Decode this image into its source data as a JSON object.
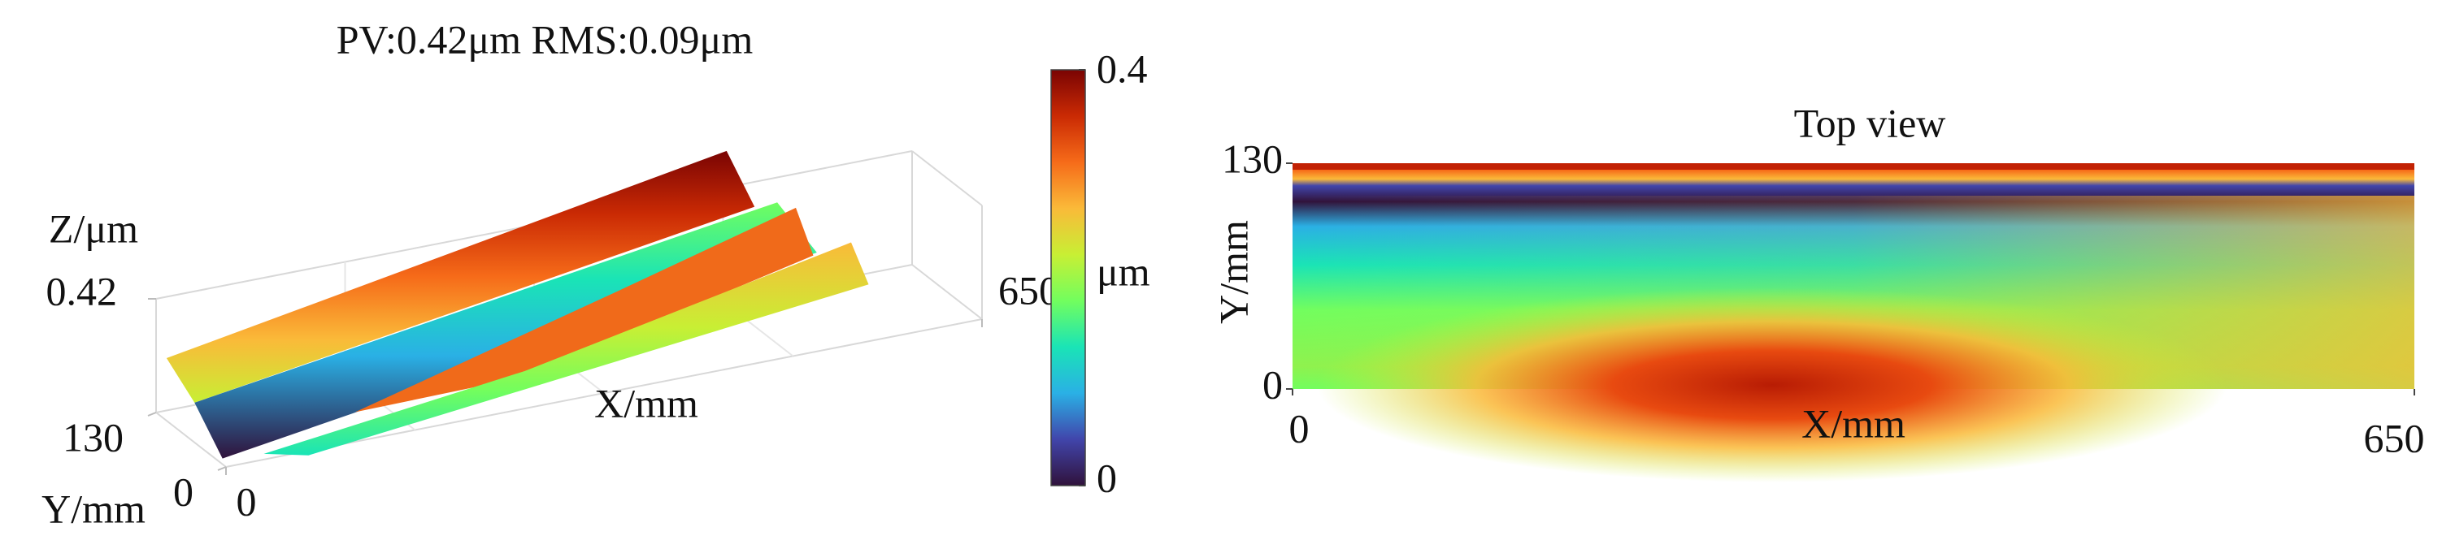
{
  "chart_data": [
    {
      "type": "surface3d",
      "title": "PV:0.42μm RMS:0.09μm",
      "xlabel": "X/mm",
      "ylabel": "Y/mm",
      "zlabel": "Z/μm",
      "xlim": [
        0,
        650
      ],
      "ylim": [
        0,
        130
      ],
      "zlim": [
        0,
        0.42
      ],
      "xticks": [
        0,
        650
      ],
      "yticks": [
        0,
        130
      ],
      "zticks": [
        0.42
      ],
      "colormap": [
        "#30123b",
        "#4145ab",
        "#2ab0e5",
        "#1ae4b6",
        "#72fe5e",
        "#c8ef34",
        "#faba39",
        "#f66b19",
        "#ca2a04",
        "#7a0403"
      ],
      "colorbar": {
        "label": "μm",
        "lim": [
          0,
          0.4
        ],
        "ticks": [
          0,
          0.4
        ]
      }
    },
    {
      "type": "heatmap",
      "title": "Top view",
      "xlabel": "X/mm",
      "ylabel": "Y/mm",
      "xlim": [
        0,
        650
      ],
      "ylim": [
        0,
        130
      ],
      "xticks": [
        0,
        650
      ],
      "yticks": [
        0,
        130
      ]
    }
  ]
}
